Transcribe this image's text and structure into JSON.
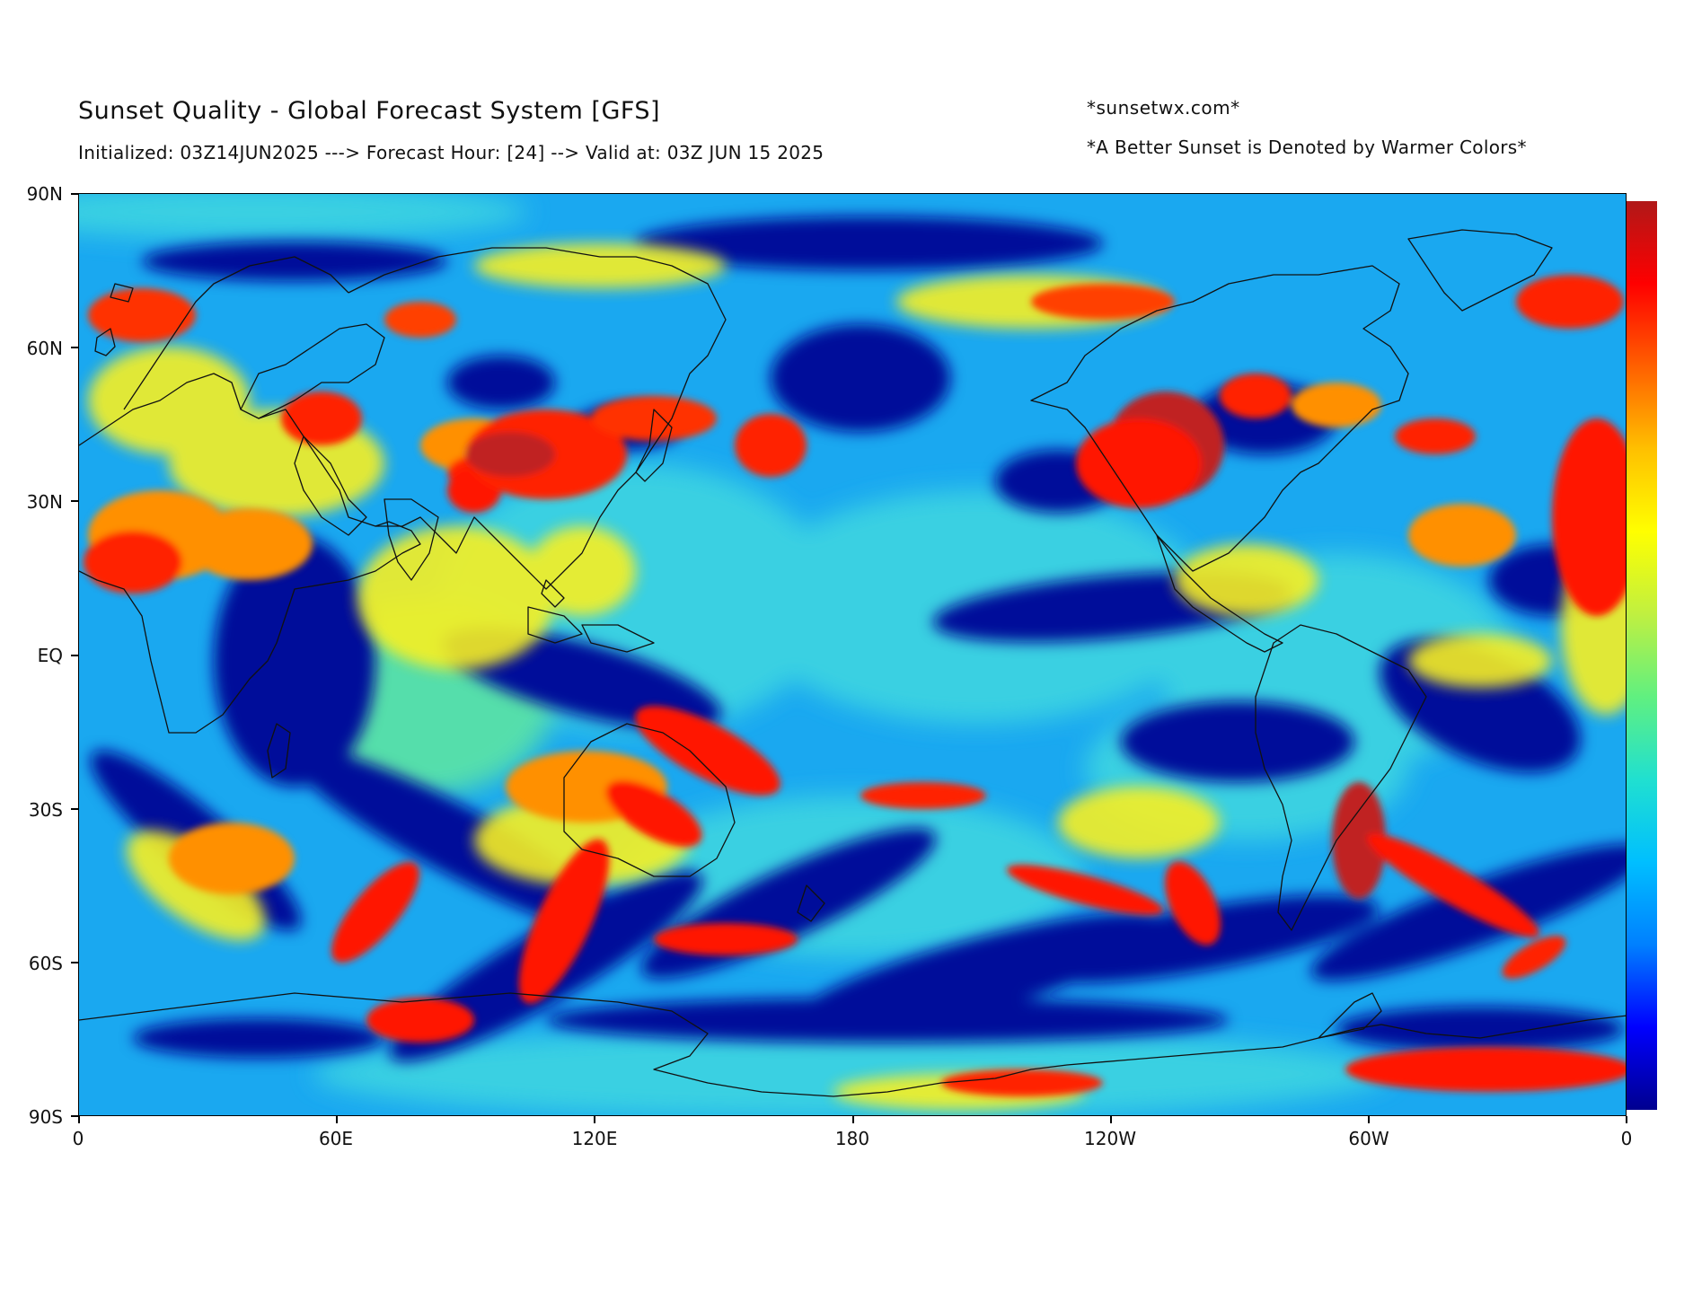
{
  "header": {
    "title": "Sunset Quality - Global Forecast System [GFS]",
    "subtitle": "Initialized: 03Z14JUN2025 ---> Forecast Hour: [24] --> Valid at: 03Z JUN 15 2025",
    "site": "*sunsetwx.com*",
    "note": "*A Better Sunset is Denoted by Warmer Colors*"
  },
  "axes": {
    "y_ticks": [
      "90N",
      "60N",
      "30N",
      "EQ",
      "30S",
      "60S",
      "90S"
    ],
    "x_ticks": [
      "0",
      "60E",
      "120E",
      "180",
      "120W",
      "60W",
      "0"
    ]
  },
  "colorbar": {
    "colors": [
      "#00008f",
      "#0000ff",
      "#0080ff",
      "#00bfff",
      "#20e0d0",
      "#60f080",
      "#c0f040",
      "#ffff00",
      "#ffc000",
      "#ff6000",
      "#ff0000",
      "#b01818"
    ]
  },
  "map": {
    "projection": "equirectangular",
    "base_color": "#1aa8f0",
    "palette": {
      "deep_blue": "#00008f",
      "blue": "#0030e0",
      "cyan": "#00c8f0",
      "light_cyan": "#40e0e0",
      "yellow": "#f8f020",
      "orange": "#ff9000",
      "red": "#ff1800",
      "dark_red": "#c02020"
    }
  }
}
